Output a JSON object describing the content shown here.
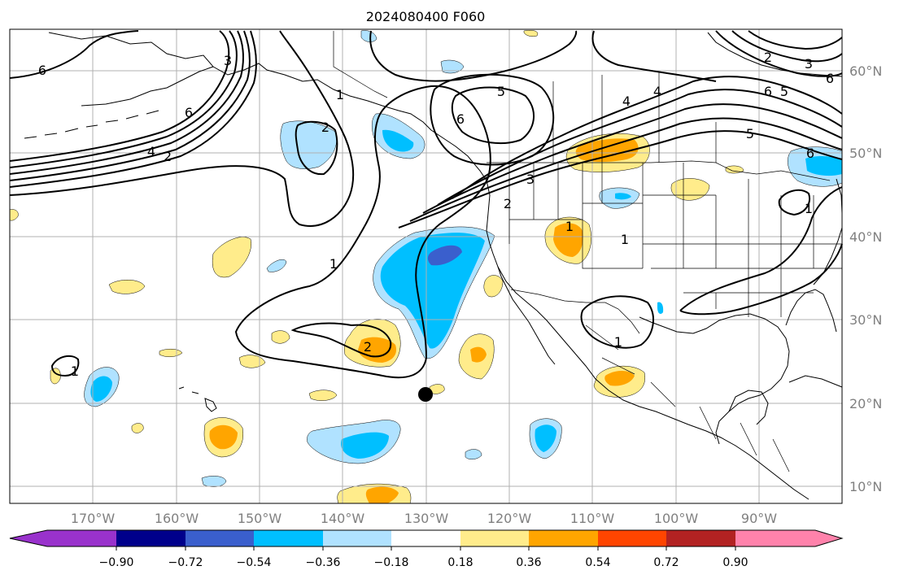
{
  "title": "2024080400 F060",
  "lon_labels": [
    "170°W",
    "160°W",
    "150°W",
    "140°W",
    "130°W",
    "120°W",
    "110°W",
    "100°W",
    "90°W"
  ],
  "lat_labels": [
    "60°N",
    "50°N",
    "40°N",
    "30°N",
    "20°N",
    "10°N"
  ],
  "colorbar": {
    "tick_labels": [
      "−0.90",
      "−0.72",
      "−0.54",
      "−0.36",
      "−0.18",
      "0.18",
      "0.36",
      "0.54",
      "0.72",
      "0.90"
    ],
    "colors": [
      "#9932cc",
      "#00008b",
      "#3a5fcd",
      "#00bfff",
      "#b0e2ff",
      "#ffffff",
      "#ffec8b",
      "#ffa500",
      "#ff4500",
      "#b22222",
      "#ff82ab"
    ]
  },
  "contour_labels": {
    "items": [
      "6",
      "3",
      "6",
      "4",
      "2",
      "1",
      "2",
      "1",
      "2",
      "1",
      "1",
      "5",
      "6",
      "3",
      "2",
      "4",
      "4",
      "6",
      "5",
      "6",
      "6",
      "2",
      "3",
      "5",
      "1",
      "1",
      "1"
    ]
  },
  "colors": {
    "light_blue": "#b0e2ff",
    "mid_blue": "#00bfff",
    "dark_blue": "#3a5fcd",
    "yellow": "#ffec8b",
    "orange": "#ffa500",
    "red_orange": "#ff4500"
  }
}
